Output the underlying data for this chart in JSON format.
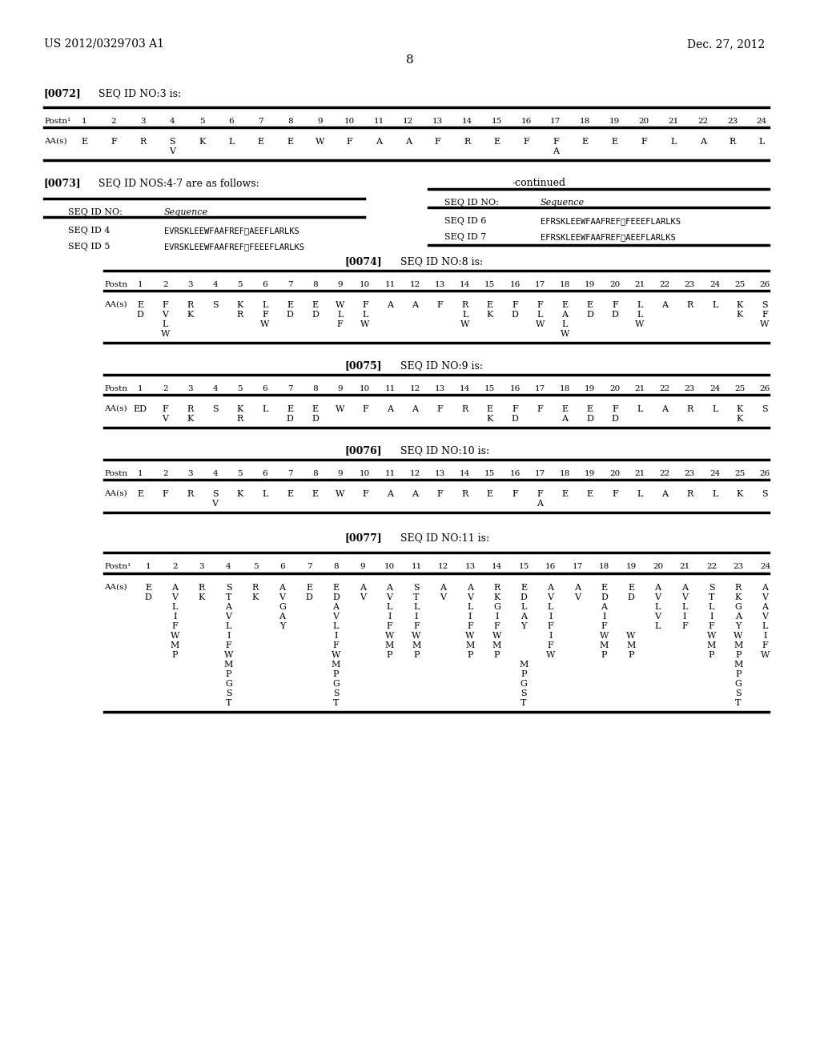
{
  "page_num": "8",
  "patent_left": "US 2012/0329703 A1",
  "patent_right": "Dec. 27, 2012",
  "background": "#ffffff"
}
